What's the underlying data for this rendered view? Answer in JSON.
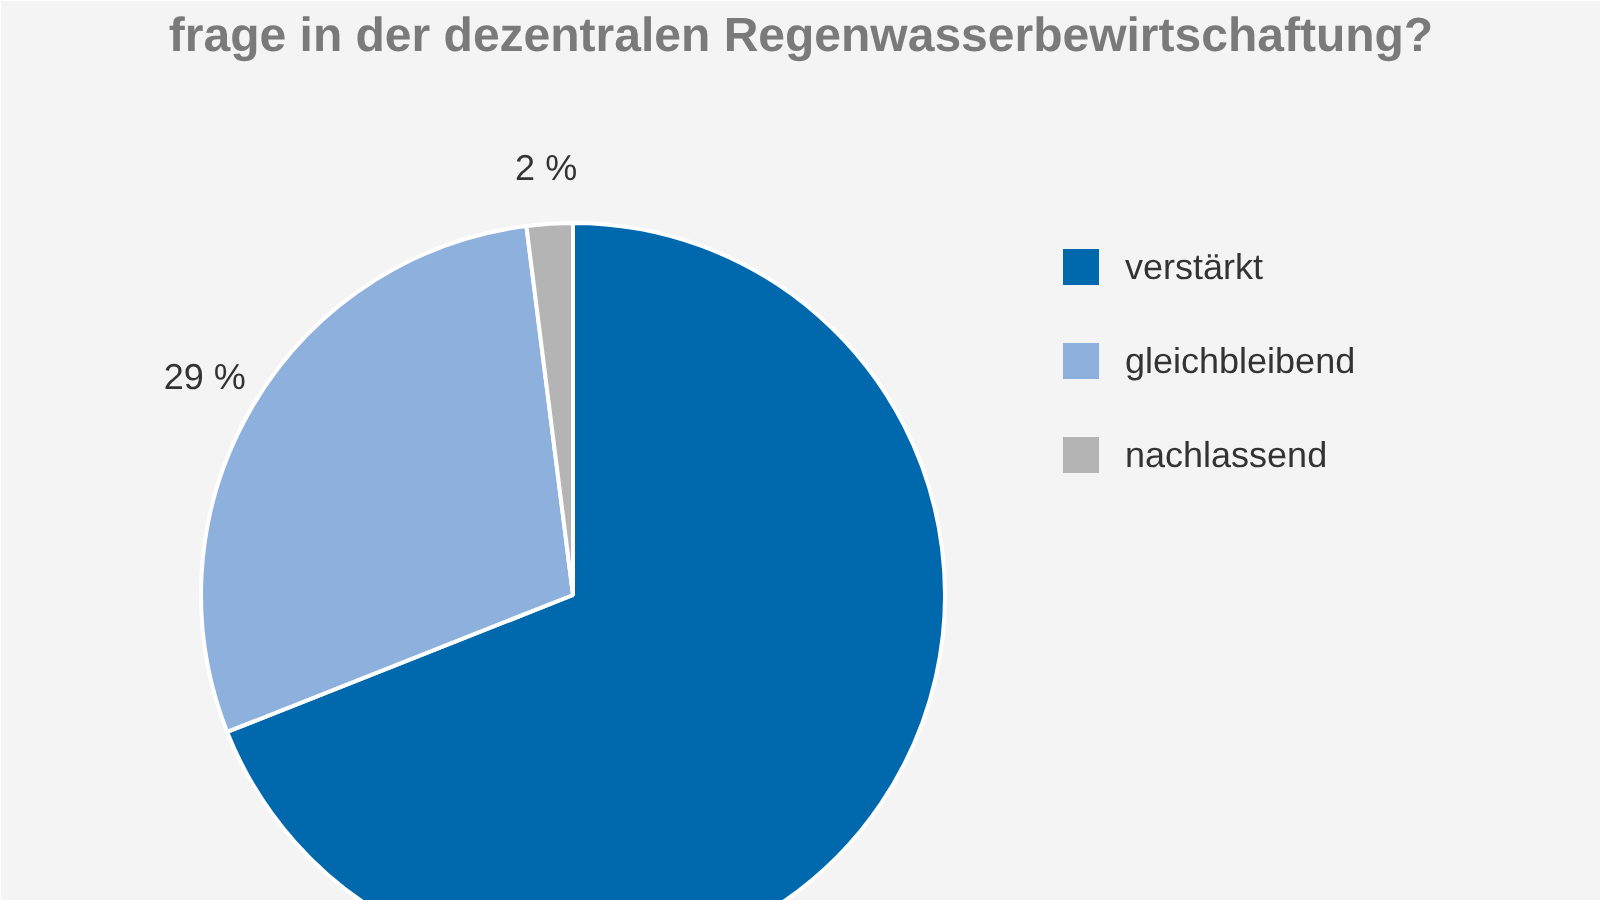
{
  "chart_data": {
    "type": "pie",
    "title": "frage in der dezentralen Regenwasserbewirtschaftung?",
    "categories": [
      "verstärkt",
      "gleichbleibend",
      "nachlassend"
    ],
    "values": [
      69,
      29,
      2
    ],
    "colors": [
      "#0068ad",
      "#8db1dc",
      "#b4b4b4"
    ],
    "value_labels": [
      null,
      "29 %",
      "2 %"
    ],
    "legend": "right"
  }
}
